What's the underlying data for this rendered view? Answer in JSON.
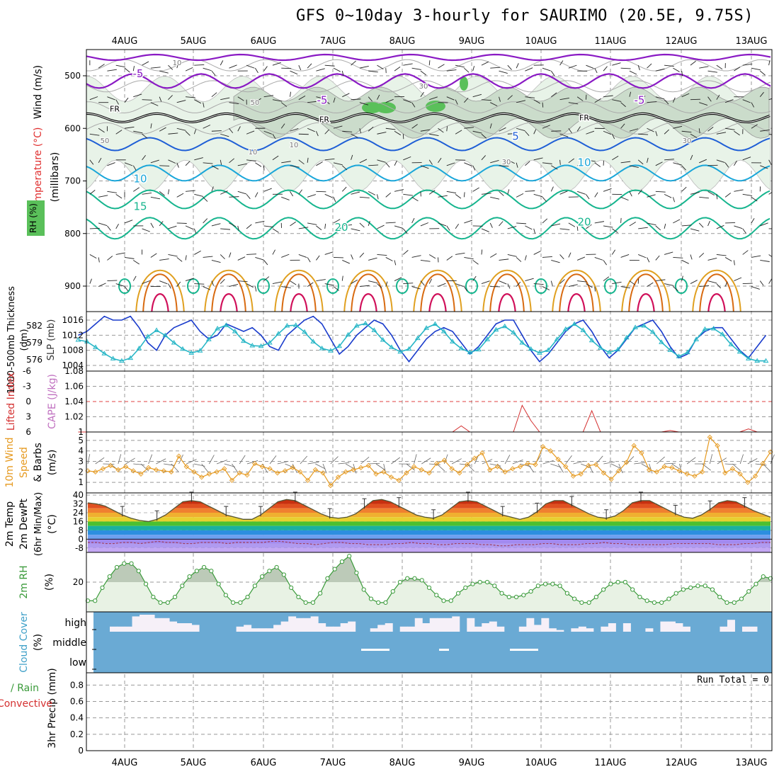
{
  "title": "GFS 0~10day 3-hourly for SAURIMO (20.5E, 9.75S)",
  "date_labels": [
    "4AUG",
    "5AUG",
    "6AUG",
    "7AUG",
    "8AUG",
    "9AUG",
    "10AUG",
    "11AUG",
    "12AUG",
    "13AUG"
  ],
  "colors": {
    "purple": "#8a1ac4",
    "black": "#000000",
    "blue": "#1f5fd6",
    "cyan": "#1aa6d9",
    "teal": "#16b58e",
    "orange": "#e0a020",
    "dark_orange": "#d86a10",
    "magenta": "#d0105a",
    "rh_fill": "#e8f3e8",
    "slp_blue": "#1a3ccc",
    "thick_cyan": "#27b6c6",
    "li_red": "#d43030",
    "wind_orange": "#e69a20",
    "rh_green": "#3a9a3a",
    "cloud_blue": "#6aaad4",
    "cloud_white": "#f6f0f8"
  },
  "chart_data": [
    {
      "panel": "sounding",
      "type": "heatmap",
      "ylabel": "(millibars)",
      "side_labels": [
        "Wind (m/s)",
        "Temperature (°C)",
        "RH (%)"
      ],
      "y_ticks": [
        500,
        600,
        700,
        800,
        900
      ],
      "ylim": [
        1050,
        450
      ],
      "isotherm_labels": [
        "-5",
        "FR",
        "5",
        "10",
        "15",
        "20"
      ],
      "rh_contour_labels": [
        "10",
        "30",
        "50"
      ]
    },
    {
      "panel": "slp_thickness",
      "type": "line",
      "left_label": "1000-500mb Thickness (dm)",
      "right_label": "SLP (mb)",
      "left_ticks": [
        576,
        579,
        582
      ],
      "right_ticks": [
        1004,
        1008,
        1012,
        1016
      ],
      "series": [
        {
          "name": "SLP (mb)",
          "values": [
            1012,
            1013,
            1015,
            1017,
            1016,
            1016,
            1017,
            1014,
            1010,
            1008,
            1012,
            1014,
            1015,
            1016,
            1013,
            1011,
            1012,
            1015,
            1014,
            1013,
            1014,
            1012,
            1009,
            1008,
            1012,
            1014,
            1016,
            1017,
            1015,
            1011,
            1007,
            1009,
            1012,
            1014,
            1016,
            1015,
            1012,
            1008,
            1005,
            1008,
            1011,
            1013,
            1014,
            1013,
            1010,
            1007,
            1009,
            1012,
            1015,
            1016,
            1016,
            1012,
            1008,
            1005,
            1007,
            1010,
            1013,
            1015,
            1016,
            1013,
            1009,
            1006,
            1008,
            1011,
            1014,
            1015,
            1016,
            1013,
            1009,
            1006,
            1007,
            1011,
            1013,
            1014,
            1014,
            1011,
            1008,
            1006,
            1009,
            1012,
            1014
          ]
        },
        {
          "name": "1000-500mb Thickness (dm)",
          "values": [
            579.5,
            579.2,
            578.2,
            577.1,
            576.2,
            575.8,
            576.3,
            578.0,
            580.1,
            581.2,
            580.3,
            579.0,
            577.9,
            577.2,
            577.6,
            579.6,
            581.5,
            582.1,
            581.0,
            579.3,
            578.5,
            578.4,
            579.0,
            580.6,
            582.0,
            582.1,
            580.9,
            579.2,
            578.0,
            577.6,
            578.4,
            580.4,
            582.0,
            582.4,
            581.2,
            579.5,
            578.2,
            577.4,
            577.9,
            579.8,
            581.6,
            582.3,
            581.0,
            579.2,
            578.0,
            577.3,
            577.8,
            579.6,
            581.3,
            581.9,
            580.8,
            579.0,
            577.9,
            577.2,
            577.7,
            579.6,
            581.4,
            582.3,
            581.2,
            579.4,
            578.1,
            577.3,
            577.8,
            579.9,
            581.7,
            582.0,
            580.9,
            579.1,
            577.7,
            576.6,
            577.3,
            579.6,
            581.4,
            581.5,
            580.5,
            578.7,
            577.4,
            576.2,
            575.8,
            575.8,
            576.4
          ]
        }
      ]
    },
    {
      "panel": "lifted_index_cape",
      "type": "line",
      "left_label": "Lifted Index",
      "right_label": "CAPE (J/kg)",
      "left_ticks": [
        6,
        3,
        0,
        -3,
        -6
      ],
      "right_ticks": [
        1,
        1.02,
        1.04,
        1.06,
        1.08
      ],
      "series": [
        {
          "name": "CAPE (J/kg)",
          "values": [
            1,
            1,
            1,
            1,
            1,
            1,
            1,
            1,
            1,
            1,
            1,
            1,
            1,
            1,
            1,
            1,
            1,
            1,
            1,
            1,
            1,
            1,
            1,
            1,
            1,
            1,
            1,
            1,
            1,
            1,
            1,
            1,
            1,
            1,
            1,
            1,
            1,
            1,
            1,
            1,
            1,
            1,
            1,
            1,
            1.008,
            1,
            1,
            1,
            1,
            1,
            1,
            1.035,
            1.015,
            1,
            1,
            1,
            1,
            1,
            1,
            1.028,
            1,
            1,
            1,
            1,
            1,
            1,
            1,
            1,
            1.002,
            1,
            1,
            1,
            1,
            1,
            1,
            1,
            1,
            1.004,
            1,
            1,
            1
          ]
        }
      ]
    },
    {
      "panel": "wind10m",
      "type": "line",
      "left_label": "10m Wind Speed & Barbs (m/s)",
      "y_ticks": [
        1,
        2,
        3,
        4,
        5
      ],
      "ylim": [
        0,
        5.8
      ],
      "series": [
        {
          "name": "Speed",
          "values": [
            2.1,
            2.0,
            2.3,
            2.6,
            2.2,
            2.5,
            2.1,
            1.8,
            2.4,
            2.2,
            2.1,
            2.0,
            3.5,
            2.5,
            2.0,
            1.5,
            1.8,
            2.0,
            2.3,
            1.2,
            1.9,
            1.7,
            2.8,
            2.5,
            2.3,
            1.9,
            2.1,
            2.4,
            2.0,
            1.2,
            2.2,
            1.9,
            0.7,
            1.5,
            2.0,
            2.2,
            2.4,
            2.6,
            1.8,
            2.0,
            1.5,
            1.2,
            1.9,
            2.5,
            2.2,
            1.9,
            2.8,
            3.1,
            2.3,
            1.9,
            2.7,
            3.3,
            3.8,
            2.2,
            2.5,
            2.0,
            2.3,
            2.5,
            2.8,
            2.7,
            4.4,
            4.0,
            3.2,
            2.5,
            1.6,
            1.8,
            2.6,
            2.7,
            1.9,
            1.3,
            2.1,
            2.9,
            4.5,
            3.8,
            2.2,
            2.0,
            2.5,
            2.4,
            2.1,
            1.8,
            1.6,
            2.0,
            5.3,
            4.5,
            1.9,
            2.3,
            1.8,
            1.0,
            1.6,
            2.8,
            3.9
          ]
        }
      ]
    },
    {
      "panel": "temp2m",
      "type": "area",
      "left_label": "2m Temp 2m DewPt (6hr Min/Max) (°C)",
      "y_ticks": [
        -8,
        0,
        8,
        16,
        24,
        32,
        40
      ],
      "ylim": [
        -12,
        42
      ],
      "series": [
        {
          "name": "2m Temp",
          "values": [
            33,
            32,
            30,
            26,
            22,
            19,
            17,
            16,
            18,
            22,
            28,
            34,
            35,
            34,
            30,
            26,
            22,
            20,
            18,
            18,
            22,
            28,
            34,
            36,
            35,
            31,
            27,
            23,
            20,
            19,
            20,
            23,
            29,
            35,
            36,
            34,
            30,
            26,
            22,
            20,
            19,
            22,
            28,
            34,
            35,
            34,
            30,
            26,
            22,
            20,
            18,
            20,
            25,
            32,
            35,
            35,
            31,
            27,
            23,
            20,
            19,
            21,
            26,
            33,
            35,
            35,
            31,
            27,
            23,
            20,
            19,
            22,
            27,
            33,
            35,
            34,
            30,
            26,
            23,
            20
          ]
        },
        {
          "name": "2m DewPt",
          "values": [
            -3,
            -3,
            -4,
            -4,
            -3,
            -3,
            -4,
            -3,
            -2,
            -3,
            -3,
            -4,
            -4,
            -3,
            -3,
            -3,
            -4,
            -3,
            -3,
            -3,
            -3,
            -2,
            -2,
            -3,
            -4,
            -4,
            -5,
            -4,
            -3,
            -3,
            -4,
            -4,
            -5,
            -5,
            -5,
            -4,
            -4,
            -3,
            -4,
            -4,
            -5,
            -5,
            -4,
            -4,
            -4,
            -5,
            -5,
            -6,
            -6,
            -5,
            -5,
            -5,
            -4,
            -4,
            -5,
            -5,
            -5,
            -4,
            -4,
            -3,
            -4,
            -4,
            -5,
            -5,
            -5,
            -5,
            -5,
            -4,
            -4,
            -4,
            -4,
            -4,
            -5,
            -5,
            -5,
            -4,
            -4,
            -3,
            -3
          ]
        }
      ]
    },
    {
      "panel": "rh2m",
      "type": "area",
      "left_label": "2m RH (%)",
      "y_ticks": [
        20
      ],
      "ylim": [
        4,
        36
      ],
      "series": [
        {
          "name": "2m RH",
          "values": [
            10,
            10,
            17,
            23,
            28,
            30,
            30,
            26,
            19,
            12,
            9,
            9,
            12,
            18,
            23,
            26,
            28,
            26,
            19,
            13,
            9,
            9,
            12,
            18,
            23,
            26,
            28,
            24,
            17,
            12,
            9,
            9,
            14,
            22,
            27,
            31,
            34,
            25,
            16,
            11,
            9,
            9,
            15,
            20,
            22,
            22,
            21,
            17,
            13,
            10,
            10,
            14,
            17,
            19,
            20,
            20,
            18,
            14,
            12,
            12,
            13,
            15,
            18,
            19,
            19,
            18,
            14,
            11,
            9,
            9,
            12,
            16,
            19,
            20,
            20,
            16,
            12,
            10,
            9,
            9,
            11,
            14,
            16,
            17,
            18,
            18,
            16,
            12,
            9,
            9,
            11,
            15,
            19,
            23,
            22
          ]
        }
      ]
    },
    {
      "panel": "cloud_cover",
      "type": "area",
      "left_label": "Cloud Cover (%)",
      "y_tick_labels": [
        "high",
        "middle",
        "low"
      ]
    },
    {
      "panel": "precip",
      "type": "bar",
      "left_label": "3hr Precip (mm)",
      "side_labels": [
        "Total / Rain",
        "Convective"
      ],
      "y_ticks": [
        0,
        0.2,
        0.4,
        0.6,
        0.8
      ],
      "ylim": [
        0,
        0.95
      ],
      "run_total": "Run Total = 0",
      "values": [
        0
      ]
    }
  ]
}
